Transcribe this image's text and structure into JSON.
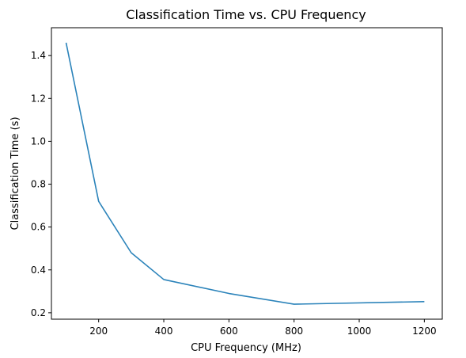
{
  "chart_data": {
    "type": "line",
    "title": "Classification Time vs. CPU Frequency",
    "xlabel": "CPU Frequency (MHz)",
    "ylabel": "Classification Time (s)",
    "xlim": [
      55,
      1255
    ],
    "ylim": [
      0.17,
      1.53
    ],
    "xticks": [
      200,
      400,
      600,
      800,
      1000,
      1200
    ],
    "yticks": [
      0.2,
      0.4,
      0.6,
      0.8,
      1.0,
      1.2,
      1.4
    ],
    "xtick_labels": [
      "200",
      "400",
      "600",
      "800",
      "1000",
      "1200"
    ],
    "ytick_labels": [
      "0.2",
      "0.4",
      "0.6",
      "0.8",
      "1.0",
      "1.2",
      "1.4"
    ],
    "grid": false,
    "series": [
      {
        "color": "#2b83ba",
        "x": [
          100,
          200,
          300,
          400,
          600,
          800,
          1200
        ],
        "y": [
          1.46,
          0.72,
          0.48,
          0.355,
          0.29,
          0.24,
          0.252
        ]
      }
    ]
  }
}
